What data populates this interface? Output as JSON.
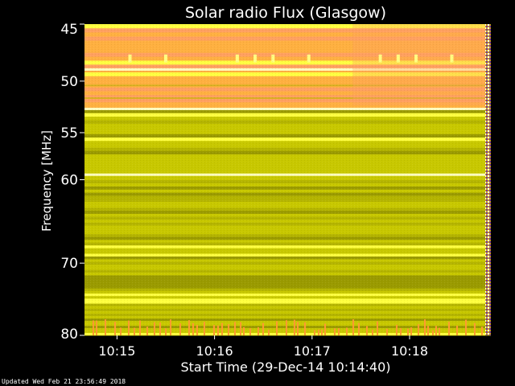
{
  "chart_data": {
    "type": "heatmap",
    "title": "Solar radio Flux (Glasgow)",
    "xlabel": "Start Time (29-Dec-14 10:14:40)",
    "ylabel": "Frequency [MHz]",
    "x_range_seconds": [
      0,
      250
    ],
    "x_ticks": [
      {
        "label": "10:15",
        "t": 20
      },
      {
        "label": "10:16",
        "t": 80
      },
      {
        "label": "10:17",
        "t": 140
      },
      {
        "label": "10:18",
        "t": 200
      }
    ],
    "y_range": [
      45,
      80
    ],
    "y_ticks": [
      45,
      50,
      55,
      60,
      70,
      80
    ],
    "y_scale": "log",
    "colormap": [
      "#9a9a00",
      "#c8c800",
      "#ffff40",
      "#ffb040",
      "#ffa060"
    ],
    "grid": false,
    "background": "#000000"
  },
  "footer": {
    "updated": "Updated Wed Feb 21 23:56:49 2018"
  }
}
